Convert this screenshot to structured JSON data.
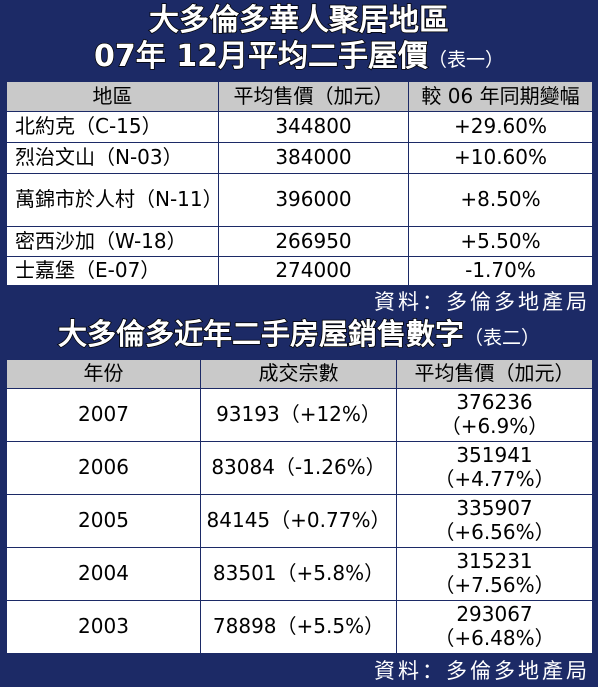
{
  "table1": {
    "title_line1": "大多倫多華人聚居地區",
    "title_line2": "07年 12月平均二手屋價",
    "title_note": "（表一）",
    "headers": [
      "地區",
      "平均售價（加元）",
      "較 06 年同期變幅"
    ],
    "rows": [
      {
        "area": "北約克（C-15）",
        "price": "344800",
        "change": "+29.60%"
      },
      {
        "area": "烈治文山（N-03）",
        "price": "384000",
        "change": "+10.60%"
      },
      {
        "area": "萬錦市於人村（N-11）",
        "price": "396000",
        "change": "+8.50%"
      },
      {
        "area": "密西沙加（W-18）",
        "price": "266950",
        "change": "+5.50%"
      },
      {
        "area": "士嘉堡（E-07）",
        "price": "274000",
        "change": "-1.70%"
      }
    ],
    "source": "資料：多倫多地產局"
  },
  "table2": {
    "title": "大多倫多近年二手房屋銷售數字",
    "title_note": "（表二）",
    "headers": [
      "年份",
      "成交宗數",
      "平均售價（加元）"
    ],
    "rows": [
      {
        "year": "2007",
        "sales": "93193（+12%）",
        "price": "376236",
        "price_change": "（+6.9%）"
      },
      {
        "year": "2006",
        "sales": "83084（-1.26%）",
        "price": "351941",
        "price_change": "（+4.77%）"
      },
      {
        "year": "2005",
        "sales": "84145（+0.77%）",
        "price": "335907",
        "price_change": "（+6.56%）"
      },
      {
        "year": "2004",
        "sales": "83501（+5.8%）",
        "price": "315231",
        "price_change": "（+7.56%）"
      },
      {
        "year": "2003",
        "sales": "78898（+5.5%）",
        "price": "293067",
        "price_change": "（+6.48%）"
      }
    ],
    "source": "資料：多倫多地產局"
  }
}
